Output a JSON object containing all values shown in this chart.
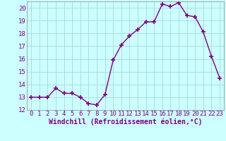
{
  "x": [
    0,
    1,
    2,
    3,
    4,
    5,
    6,
    7,
    8,
    9,
    10,
    11,
    12,
    13,
    14,
    15,
    16,
    17,
    18,
    19,
    20,
    21,
    22,
    23
  ],
  "y": [
    13.0,
    13.0,
    13.0,
    13.7,
    13.3,
    13.3,
    13.0,
    12.5,
    12.4,
    13.2,
    15.9,
    17.1,
    17.8,
    18.3,
    18.9,
    18.9,
    20.3,
    20.1,
    20.4,
    19.4,
    19.3,
    18.1,
    16.2,
    14.5
  ],
  "line_color": "#800080",
  "marker": "+",
  "bg_color": "#ccffff",
  "grid_color": "#aadddd",
  "xlabel": "Windchill (Refroidissement éolien,°C)",
  "tick_color": "#800080",
  "ylim": [
    12,
    20.5
  ],
  "xlim": [
    -0.5,
    23.5
  ],
  "yticks": [
    12,
    13,
    14,
    15,
    16,
    17,
    18,
    19,
    20
  ],
  "xticks": [
    0,
    1,
    2,
    3,
    4,
    5,
    6,
    7,
    8,
    9,
    10,
    11,
    12,
    13,
    14,
    15,
    16,
    17,
    18,
    19,
    20,
    21,
    22,
    23
  ],
  "font_size": 6.5,
  "xlabel_fontsize": 7,
  "linewidth": 1.0,
  "markersize": 4,
  "markeredgewidth": 1.2
}
